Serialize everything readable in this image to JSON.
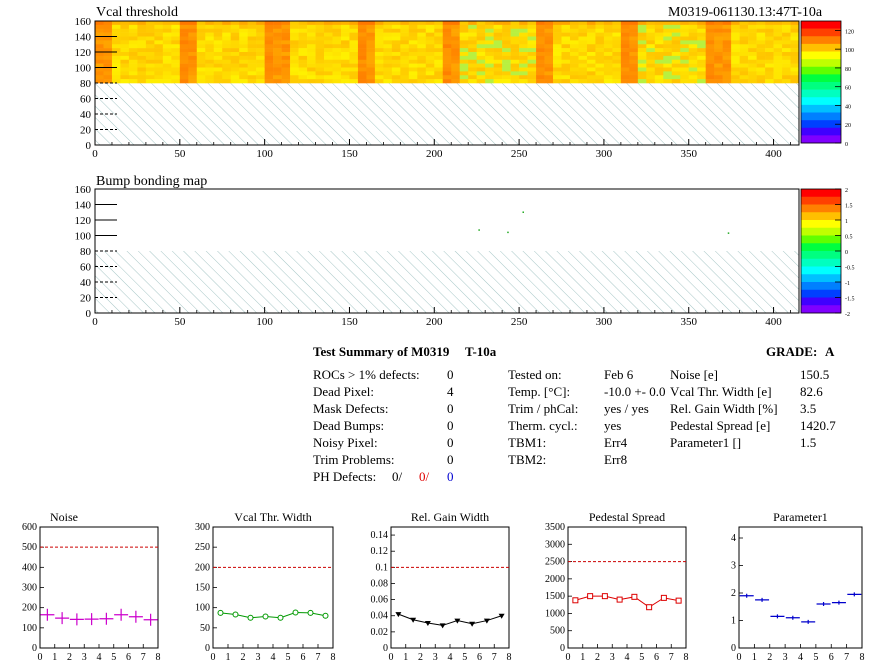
{
  "map1": {
    "title": "Vcal threshold",
    "id_label": "M0319-061130.13:47T-10a",
    "ylim": [
      0,
      160
    ],
    "xlim": [
      0,
      415
    ],
    "yticks": [
      0,
      20,
      40,
      60,
      80,
      100,
      120,
      140,
      160
    ],
    "xticks": [
      0,
      50,
      100,
      150,
      200,
      250,
      300,
      350,
      400
    ],
    "filled_rows": [
      80,
      160
    ],
    "palette_ticks": [
      0,
      20,
      40,
      60,
      80,
      100,
      120
    ],
    "palette_range": [
      0,
      130
    ]
  },
  "map2": {
    "title": "Bump bonding map",
    "ylim": [
      0,
      160
    ],
    "xlim": [
      0,
      415
    ],
    "yticks": [
      0,
      20,
      40,
      60,
      80,
      100,
      120,
      140,
      160
    ],
    "xticks": [
      0,
      50,
      100,
      150,
      200,
      250,
      300,
      350,
      400
    ],
    "palette_ticks": [
      "-2",
      "-1.5",
      "-1",
      "-0.5",
      "0",
      "0.5",
      "1",
      "1.5",
      "2"
    ],
    "dots": [
      [
        226,
        108
      ],
      [
        243,
        105
      ],
      [
        252,
        131
      ],
      [
        373,
        104
      ]
    ]
  },
  "summary": {
    "title": "Test Summary of M0319",
    "temp_label": "T-10a",
    "grade_label": "GRADE:",
    "grade": "A",
    "left": [
      {
        "label": "ROCs > 1% defects:",
        "value": "0"
      },
      {
        "label": "Dead Pixel:",
        "value": "4"
      },
      {
        "label": "Mask Defects:",
        "value": "0"
      },
      {
        "label": "Dead Bumps:",
        "value": "0"
      },
      {
        "label": "Noisy Pixel:",
        "value": "0"
      },
      {
        "label": "Trim Problems:",
        "value": "0"
      }
    ],
    "ph_defects": {
      "label": "PH Defects:",
      "v1": "0/",
      "v2": "0/",
      "v3": "0"
    },
    "middle": [
      {
        "label": "Tested on:",
        "value": "Feb 6"
      },
      {
        "label": "Temp. [°C]:",
        "value": "-10.0 +- 0.0"
      },
      {
        "label": "Trim / phCal:",
        "value": "yes / yes"
      },
      {
        "label": "Therm. cycl.:",
        "value": "yes"
      },
      {
        "label": "TBM1:",
        "value": "Err4"
      },
      {
        "label": "TBM2:",
        "value": "Err8"
      }
    ],
    "right": [
      {
        "label": "Noise [e]",
        "value": "150.5"
      },
      {
        "label": "Vcal Thr. Width [e]",
        "value": "82.6"
      },
      {
        "label": "Rel. Gain Width [%]",
        "value": "3.5"
      },
      {
        "label": "Pedestal Spread [e]",
        "value": "1420.7"
      },
      {
        "label": "Parameter1 []",
        "value": "1.5"
      }
    ]
  },
  "chart_data": [
    {
      "type": "scatter",
      "title": "Noise",
      "x": [
        0.5,
        1.5,
        2.5,
        3.5,
        4.5,
        5.5,
        6.5,
        7.5
      ],
      "y": [
        165,
        148,
        142,
        143,
        145,
        165,
        155,
        140
      ],
      "ylim": [
        0,
        600
      ],
      "xlim": [
        0,
        8
      ],
      "yticks": [
        0,
        100,
        200,
        300,
        400,
        500,
        600
      ],
      "limit": 500,
      "color": "#cc00cc",
      "marker": "plus"
    },
    {
      "type": "line",
      "title": "Vcal Thr. Width",
      "x": [
        0.5,
        1.5,
        2.5,
        3.5,
        4.5,
        5.5,
        6.5,
        7.5
      ],
      "y": [
        87,
        83,
        75,
        78,
        75,
        88,
        87,
        80
      ],
      "ylim": [
        0,
        300
      ],
      "xlim": [
        0,
        8
      ],
      "yticks": [
        0,
        50,
        100,
        150,
        200,
        250,
        300
      ],
      "limit": 200,
      "color": "#009900",
      "marker": "circle"
    },
    {
      "type": "line",
      "title": "Rel. Gain Width",
      "x": [
        0.5,
        1.5,
        2.5,
        3.5,
        4.5,
        5.5,
        6.5,
        7.5
      ],
      "y": [
        0.042,
        0.035,
        0.031,
        0.028,
        0.034,
        0.03,
        0.034,
        0.04
      ],
      "ylim": [
        0,
        0.15
      ],
      "xlim": [
        0,
        8
      ],
      "yticks": [
        0,
        0.02,
        0.04,
        0.06,
        0.08,
        0.1,
        0.12,
        0.14
      ],
      "limit": 0.1,
      "color": "#000000",
      "marker": "triangle"
    },
    {
      "type": "line",
      "title": "Pedestal Spread",
      "x": [
        0.5,
        1.5,
        2.5,
        3.5,
        4.5,
        5.5,
        6.5,
        7.5
      ],
      "y": [
        1380,
        1500,
        1500,
        1400,
        1480,
        1180,
        1450,
        1370
      ],
      "ylim": [
        0,
        3500
      ],
      "xlim": [
        0,
        8
      ],
      "yticks": [
        0,
        500,
        1000,
        1500,
        2000,
        2500,
        3000,
        3500
      ],
      "limit": 2500,
      "color": "#dd0000",
      "marker": "square"
    },
    {
      "type": "scatter",
      "title": "Parameter1",
      "x": [
        0.5,
        1.5,
        2.5,
        3.5,
        4.5,
        5.5,
        6.5,
        7.5
      ],
      "y": [
        1.9,
        1.75,
        1.15,
        1.1,
        0.95,
        1.6,
        1.65,
        1.95
      ],
      "ylim": [
        0,
        4.4
      ],
      "xlim": [
        0,
        8
      ],
      "yticks": [
        0,
        1,
        2,
        3,
        4
      ],
      "color": "#0000cc",
      "marker": "hbar"
    }
  ]
}
